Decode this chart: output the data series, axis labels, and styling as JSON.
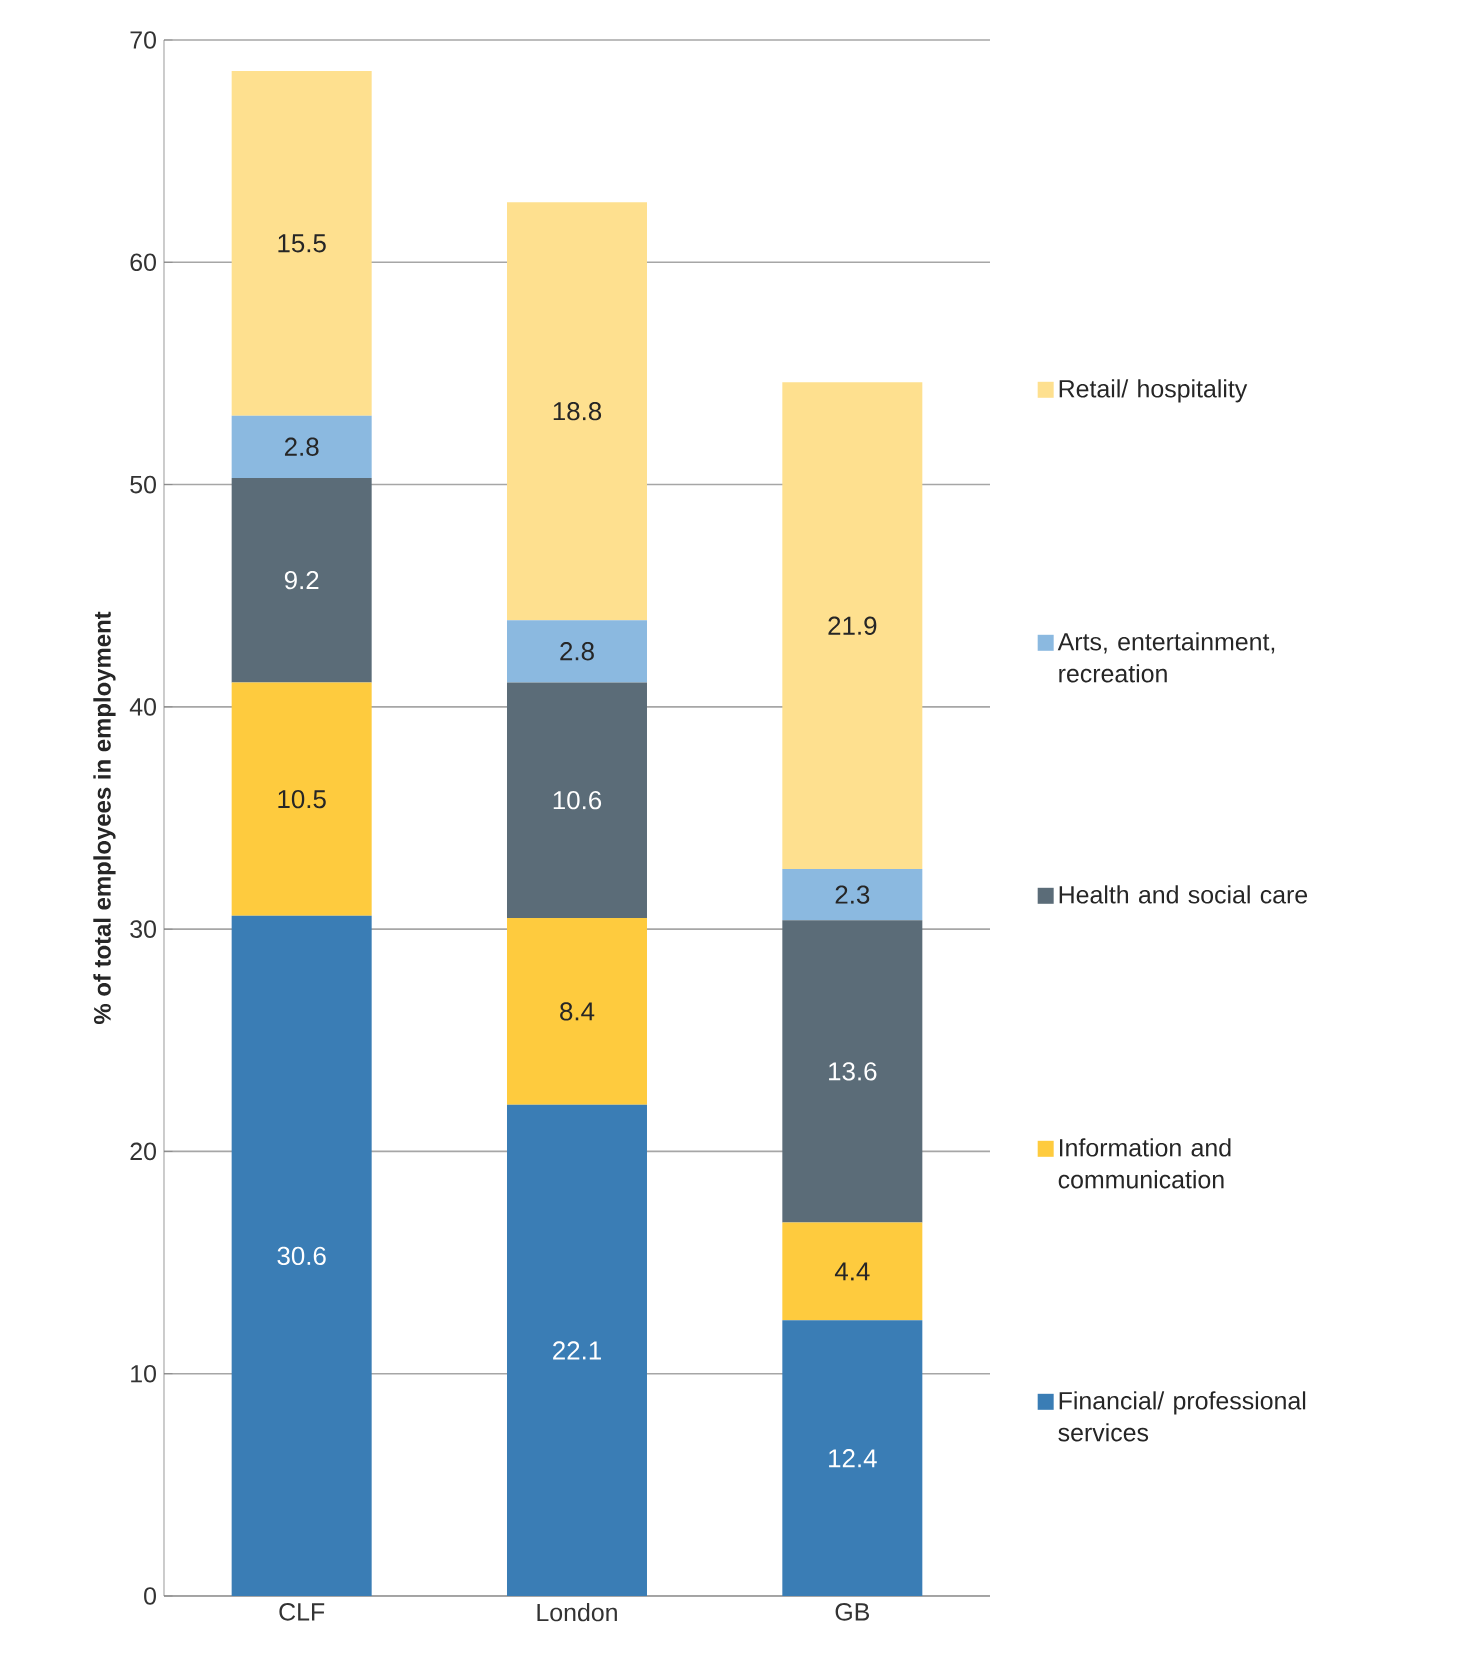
{
  "chart_data": {
    "type": "bar",
    "stacked": true,
    "categories": [
      "CLF",
      "London",
      "GB"
    ],
    "ylabel": "% of total employees in employment",
    "ylim": [
      0,
      70
    ],
    "yticks": [
      0,
      10,
      20,
      30,
      40,
      50,
      60,
      70
    ],
    "grid": "y",
    "legend": "right",
    "data_labels": true,
    "series": [
      {
        "name": "Financial/ professional services",
        "color": "#3a7db5",
        "values": [
          30.6,
          22.1,
          12.4
        ]
      },
      {
        "name": "Information and communication",
        "color": "#fecb3e",
        "values": [
          10.5,
          8.4,
          4.4
        ]
      },
      {
        "name": "Health and social care",
        "color": "#5b6c78",
        "values": [
          9.2,
          10.6,
          13.6
        ]
      },
      {
        "name": "Arts, entertainment, recreation",
        "color": "#8bb9e0",
        "values": [
          2.8,
          2.8,
          2.3
        ]
      },
      {
        "name": "Retail/ hospitality",
        "color": "#fee08f",
        "values": [
          15.5,
          18.8,
          21.9
        ]
      }
    ]
  }
}
